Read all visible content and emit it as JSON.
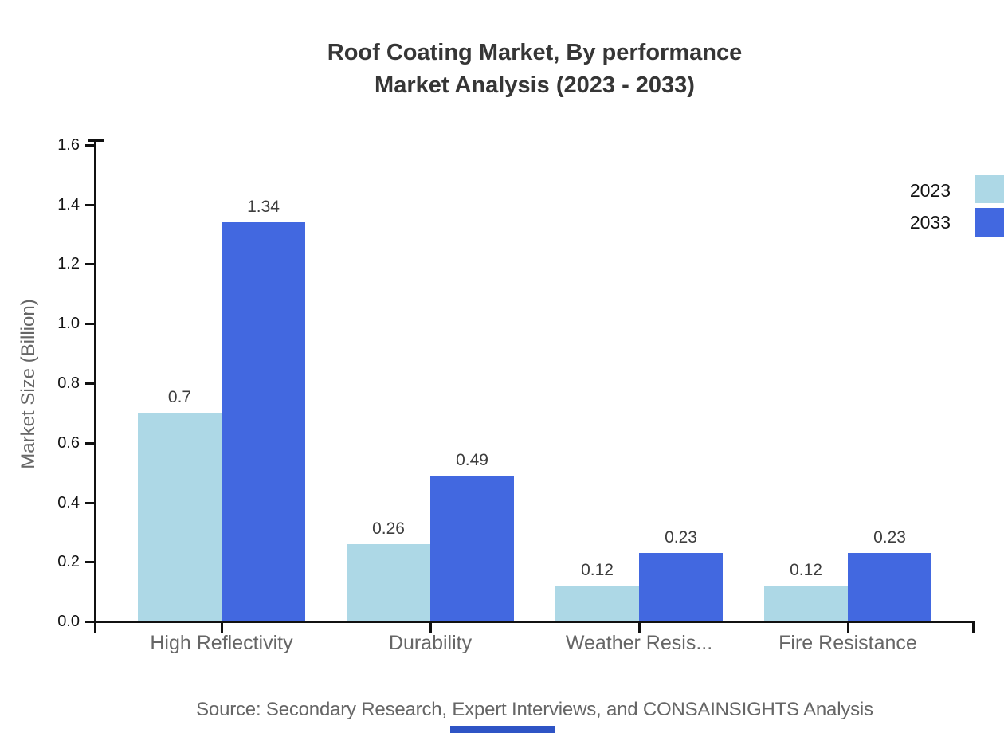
{
  "source": "Source: Secondary Research, Expert Interviews, and CONSAINSIGHTS Analysis",
  "colors": {
    "series_2023": "#ADD8E6",
    "series_2033": "#4268E0",
    "title_text": "#363636",
    "axis_line": "#111111",
    "muted_text": "#666666",
    "bottom_strip": "#2E54C5"
  },
  "legend": {
    "items": [
      {
        "label": "2023",
        "color": "#ADD8E6"
      },
      {
        "label": "2033",
        "color": "#4268E0"
      }
    ]
  },
  "chart_data": {
    "type": "bar",
    "title": "Roof Coating Market, By performance",
    "subtitle": "Market Analysis (2023 - 2033)",
    "categories": [
      "High Reflectivity",
      "Durability",
      "Weather Resis...",
      "Fire Resistance"
    ],
    "series": [
      {
        "name": "2023",
        "color": "#ADD8E6",
        "values": [
          0.7,
          0.26,
          0.12,
          0.12
        ]
      },
      {
        "name": "2033",
        "color": "#4268E0",
        "values": [
          1.34,
          0.49,
          0.23,
          0.23
        ]
      }
    ],
    "value_labels": [
      [
        "0.7",
        "0.26",
        "0.12",
        "0.12"
      ],
      [
        "1.34",
        "0.49",
        "0.23",
        "0.23"
      ]
    ],
    "xlabel": "",
    "ylabel": "Market Size (Billion)",
    "ylim": [
      0,
      1.6
    ],
    "ytick_step": 0.2,
    "ytick_labels": [
      "0.0",
      "0.2",
      "0.4",
      "0.6",
      "0.8",
      "1.0",
      "1.2",
      "1.4",
      "1.6"
    ],
    "grid": false,
    "legend_position": "top-right"
  }
}
